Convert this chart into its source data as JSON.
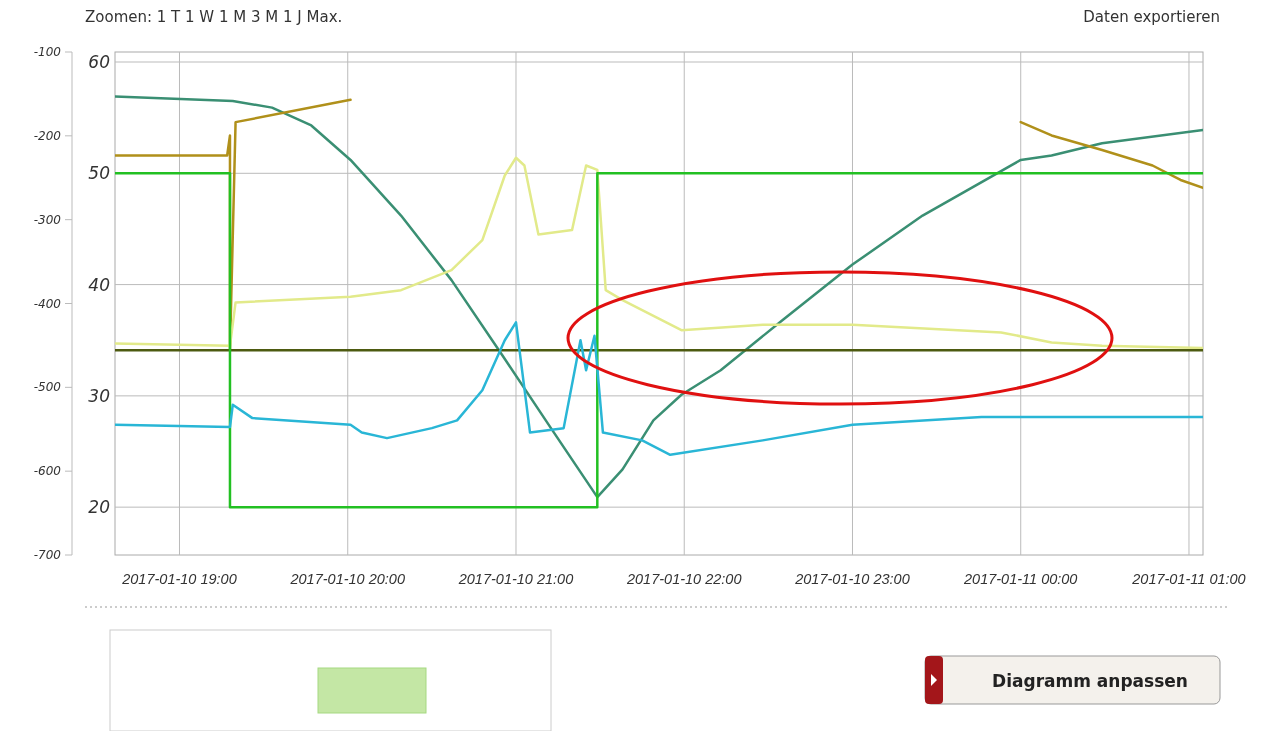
{
  "chart_data": {
    "type": "line",
    "xlim": [
      "2017-01-10T18:37",
      "2017-01-11T01:05"
    ],
    "xticks": [
      {
        "value": "2017-01-10T19:00",
        "label": "2017-01-10 19:00"
      },
      {
        "value": "2017-01-10T20:00",
        "label": "2017-01-10 20:00"
      },
      {
        "value": "2017-01-10T21:00",
        "label": "2017-01-10 21:00"
      },
      {
        "value": "2017-01-10T22:00",
        "label": "2017-01-10 22:00"
      },
      {
        "value": "2017-01-10T23:00",
        "label": "2017-01-10 23:00"
      },
      {
        "value": "2017-01-11T00:00",
        "label": "2017-01-11 00:00"
      },
      {
        "value": "2017-01-11T01:00",
        "label": "2017-01-11 01:00"
      }
    ],
    "ylim": [
      15.7,
      60.9
    ],
    "yticks": [
      20,
      30,
      40,
      50,
      60
    ],
    "y2lim": [
      -700,
      -100
    ],
    "y2ticks": [
      -100,
      -200,
      -300,
      -400,
      -500,
      -600,
      -700
    ],
    "grid": true,
    "marker": "none",
    "line_style": "solid",
    "series": [
      {
        "color": "#3a8f73",
        "x": [
          "2017-01-10T18:37",
          "2017-01-10T19:19",
          "2017-01-10T19:33",
          "2017-01-10T19:47",
          "2017-01-10T20:01",
          "2017-01-10T20:19",
          "2017-01-10T20:37",
          "2017-01-10T20:55",
          "2017-01-10T21:13",
          "2017-01-10T21:29",
          "2017-01-10T21:38",
          "2017-01-10T21:49",
          "2017-01-10T21:59",
          "2017-01-10T22:13",
          "2017-01-10T22:35",
          "2017-01-10T23:00",
          "2017-01-10T23:25",
          "2017-01-11T00:00",
          "2017-01-11T00:11",
          "2017-01-11T00:29",
          "2017-01-11T01:05"
        ],
        "values": [
          56.9,
          56.5,
          55.9,
          54.3,
          51.2,
          46.2,
          40.4,
          33.7,
          26.9,
          20.9,
          23.4,
          27.8,
          30.1,
          32.3,
          36.8,
          41.8,
          46.2,
          51.2,
          51.6,
          52.7,
          53.9
        ]
      },
      {
        "color": "#b0901a",
        "x": [
          "2017-01-10T18:37",
          "2017-01-10T19:17",
          "2017-01-10T19:18",
          "2017-01-10T19:18",
          "2017-01-10T19:20",
          "2017-01-10T20:01",
          "2017-01-10T22:00",
          "2017-01-11T00:00",
          "2017-01-11T00:11",
          "2017-01-11T00:29",
          "2017-01-11T00:47",
          "2017-01-11T00:57",
          "2017-01-11T01:05"
        ],
        "values": [
          51.6,
          51.6,
          53.4,
          34.1,
          54.6,
          56.6,
          null,
          54.6,
          53.4,
          52.1,
          50.7,
          49.4,
          48.7
        ]
      },
      {
        "color": "#e2ea8a",
        "x": [
          "2017-01-10T18:37",
          "2017-01-10T19:18",
          "2017-01-10T19:20",
          "2017-01-10T20:01",
          "2017-01-10T20:19",
          "2017-01-10T20:37",
          "2017-01-10T20:48",
          "2017-01-10T20:56",
          "2017-01-10T21:00",
          "2017-01-10T21:03",
          "2017-01-10T21:08",
          "2017-01-10T21:20",
          "2017-01-10T21:25",
          "2017-01-10T21:29",
          "2017-01-10T21:32",
          "2017-01-10T21:38",
          "2017-01-10T21:59",
          "2017-01-10T22:28",
          "2017-01-10T23:00",
          "2017-01-10T23:53",
          "2017-01-11T00:11",
          "2017-01-11T00:29",
          "2017-01-11T01:05"
        ],
        "values": [
          34.7,
          34.5,
          38.4,
          38.9,
          39.5,
          41.3,
          44.0,
          49.8,
          51.4,
          50.7,
          44.5,
          44.9,
          50.7,
          50.3,
          39.5,
          38.6,
          35.9,
          36.4,
          36.4,
          35.7,
          34.8,
          34.5,
          34.3
        ]
      },
      {
        "color": "#4d5a10",
        "x": [
          "2017-01-10T18:37",
          "2017-01-11T01:05"
        ],
        "values": [
          34.1,
          34.1
        ]
      },
      {
        "color": "#22c022",
        "x": [
          "2017-01-10T18:37",
          "2017-01-10T19:18",
          "2017-01-10T19:18",
          "2017-01-10T21:29",
          "2017-01-10T21:29",
          "2017-01-11T01:05"
        ],
        "values": [
          50,
          50,
          20,
          20,
          50,
          50
        ]
      },
      {
        "color": "#29b6d6",
        "x": [
          "2017-01-10T18:37",
          "2017-01-10T19:18",
          "2017-01-10T19:19",
          "2017-01-10T19:26",
          "2017-01-10T20:01",
          "2017-01-10T20:05",
          "2017-01-10T20:14",
          "2017-01-10T20:30",
          "2017-01-10T20:39",
          "2017-01-10T20:48",
          "2017-01-10T20:56",
          "2017-01-10T21:00",
          "2017-01-10T21:05",
          "2017-01-10T21:17",
          "2017-01-10T21:23",
          "2017-01-10T21:25",
          "2017-01-10T21:28",
          "2017-01-10T21:31",
          "2017-01-10T21:45",
          "2017-01-10T21:55",
          "2017-01-10T22:28",
          "2017-01-10T23:00",
          "2017-01-10T23:46",
          "2017-01-11T01:05"
        ],
        "values": [
          27.4,
          27.2,
          29.2,
          28.0,
          27.4,
          26.7,
          26.2,
          27.1,
          27.8,
          30.5,
          35.0,
          36.6,
          26.7,
          27.1,
          35.0,
          32.3,
          35.4,
          26.7,
          26.0,
          24.7,
          26.0,
          27.4,
          28.1,
          28.1
        ]
      }
    ],
    "annotations": [
      "Zoomen: 1 T 1 W 1 M 3 M 1 J Max.",
      "Daten exportieren",
      "Diagramm anpassen"
    ]
  }
}
